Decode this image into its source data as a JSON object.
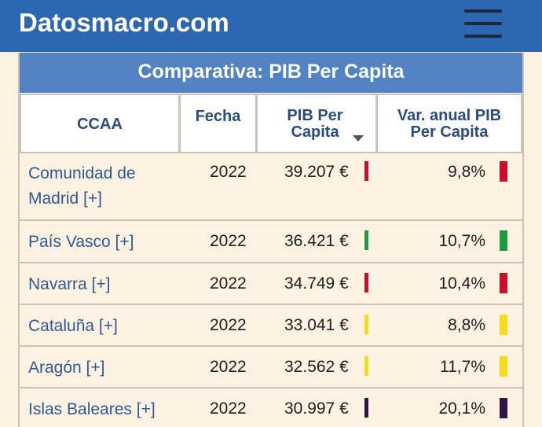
{
  "header": {
    "brand": "Datosmacro.com",
    "menu_icon": "hamburger-menu-icon"
  },
  "table": {
    "caption": "Comparativa: PIB Per Capita",
    "columns": {
      "ccaa": "CCAA",
      "fecha": "Fecha",
      "pib": "PIB Per Capita",
      "var": "Var. anual PIB Per Capita"
    },
    "sort_icon": "sort-descending-icon",
    "rows": [
      {
        "name": "Comunidad de Madrid [+]",
        "year": "2022",
        "pib": "39.207 €",
        "var": "9,8%",
        "pib_color": "#c8102e",
        "var_color": "#c8102e"
      },
      {
        "name": "País Vasco [+]",
        "year": "2022",
        "pib": "36.421 €",
        "var": "10,7%",
        "pib_color": "#1e9a3f",
        "var_color": "#1e9a3f"
      },
      {
        "name": "Navarra [+]",
        "year": "2022",
        "pib": "34.749 €",
        "var": "10,4%",
        "pib_color": "#c8102e",
        "var_color": "#c8102e"
      },
      {
        "name": "Cataluña [+]",
        "year": "2022",
        "pib": "33.041 €",
        "var": "8,8%",
        "pib_color": "#f3dc1a",
        "var_color": "#f3dc1a"
      },
      {
        "name": "Aragón [+]",
        "year": "2022",
        "pib": "32.562 €",
        "var": "11,7%",
        "pib_color": "#f3dc1a",
        "var_color": "#f3dc1a"
      },
      {
        "name": "Islas Baleares [+]",
        "year": "2022",
        "pib": "30.997 €",
        "var": "20,1%",
        "pib_color": "#2e1545",
        "var_color": "#2e1545"
      }
    ]
  }
}
